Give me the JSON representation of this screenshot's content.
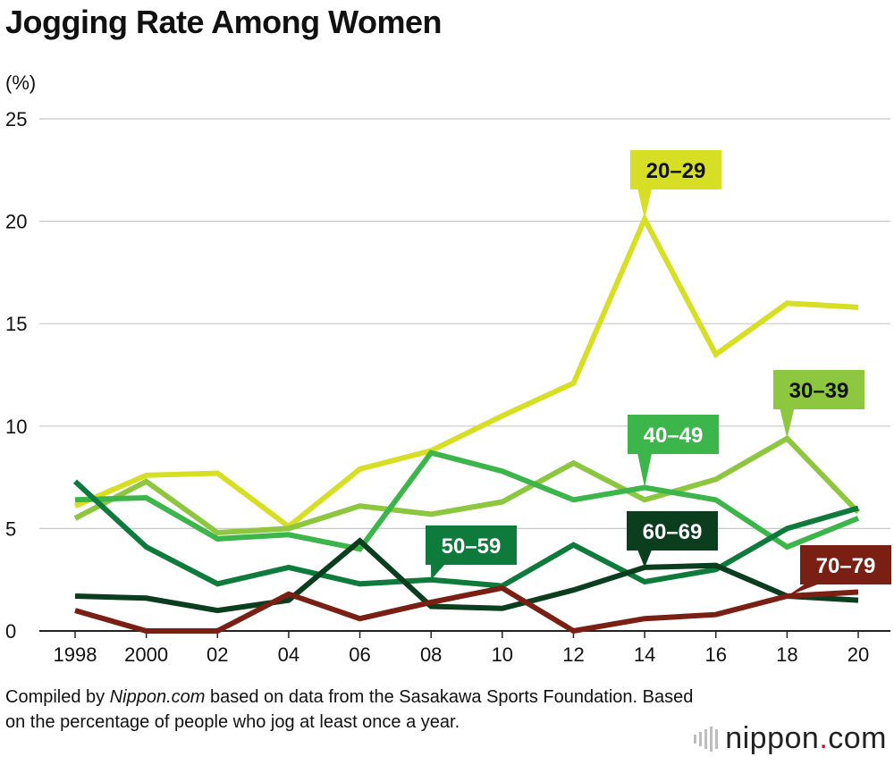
{
  "title": "Jogging Rate Among Women",
  "footer": {
    "prefix": "Compiled by ",
    "source_name": "Nippon.com",
    "suffix": " based on data from the Sasakawa Sports Foundation. Based on the percentage of people who jog at least once a year."
  },
  "logo": {
    "name": "nippon",
    "dot": ".",
    "tld": "com"
  },
  "chart_data": {
    "type": "line",
    "title": "Jogging Rate Among Women",
    "ylabel": "(%)",
    "xlabel": "",
    "ylim": [
      0,
      25
    ],
    "yticks": [
      0,
      5,
      10,
      15,
      20,
      25
    ],
    "grid": true,
    "categories": [
      "1998",
      "2000",
      "02",
      "04",
      "06",
      "08",
      "10",
      "12",
      "14",
      "16",
      "18",
      "20"
    ],
    "series": [
      {
        "name": "20–29",
        "color": "#d6df23",
        "text_color": "#111111",
        "values": [
          6.1,
          7.6,
          7.7,
          5.1,
          7.9,
          8.8,
          10.5,
          12.1,
          20.1,
          13.5,
          16.0,
          15.8
        ]
      },
      {
        "name": "30–39",
        "color": "#8dc63f",
        "text_color": "#111111",
        "values": [
          5.5,
          7.3,
          4.8,
          5.0,
          6.1,
          5.7,
          6.3,
          8.2,
          6.4,
          7.4,
          9.4,
          5.8
        ]
      },
      {
        "name": "40–49",
        "color": "#3cb54a",
        "text_color": "#ffffff",
        "values": [
          6.4,
          6.5,
          4.5,
          4.7,
          4.0,
          8.7,
          7.8,
          6.4,
          7.0,
          6.4,
          4.1,
          5.5
        ]
      },
      {
        "name": "50–59",
        "color": "#0e7a3c",
        "text_color": "#ffffff",
        "values": [
          7.3,
          4.1,
          2.3,
          3.1,
          2.3,
          2.5,
          2.2,
          4.2,
          2.4,
          3.0,
          5.0,
          6.0
        ]
      },
      {
        "name": "60–69",
        "color": "#0b3d1f",
        "text_color": "#ffffff",
        "values": [
          1.7,
          1.6,
          1.0,
          1.5,
          4.4,
          1.2,
          1.1,
          2.0,
          3.1,
          3.2,
          1.7,
          1.5
        ]
      },
      {
        "name": "70–79",
        "color": "#7a1f14",
        "text_color": "#ffffff",
        "values": [
          1.0,
          0.0,
          0.0,
          1.8,
          0.6,
          1.4,
          2.1,
          0.0,
          0.6,
          0.8,
          1.7,
          1.9
        ]
      }
    ]
  }
}
